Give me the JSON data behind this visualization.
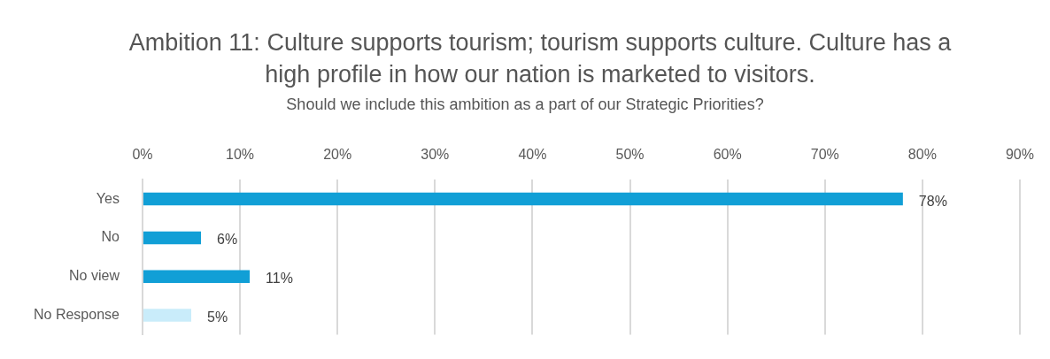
{
  "chart_data": {
    "type": "bar",
    "orientation": "horizontal",
    "title": "Ambition 11: Culture supports tourism; tourism supports culture. Culture has a high profile in how our nation is marketed to visitors.",
    "subtitle": "Should we include this ambition as a part of our Strategic Priorities?",
    "categories": [
      "Yes",
      "No",
      "No view",
      "No Response"
    ],
    "values": [
      78,
      6,
      11,
      5
    ],
    "colors": [
      "#119fd6",
      "#119fd6",
      "#119fd6",
      "#c9ecfa"
    ],
    "value_labels": [
      "78%",
      "6%",
      "11%",
      "5%"
    ],
    "xlim": [
      0,
      90
    ],
    "xticks": [
      {
        "value": 0,
        "label": "0%"
      },
      {
        "value": 10,
        "label": "10%"
      },
      {
        "value": 20,
        "label": "20%"
      },
      {
        "value": 30,
        "label": "30%"
      },
      {
        "value": 40,
        "label": "40%"
      },
      {
        "value": 50,
        "label": "50%"
      },
      {
        "value": 60,
        "label": "60%"
      },
      {
        "value": 70,
        "label": "70%"
      },
      {
        "value": 80,
        "label": "80%"
      },
      {
        "value": 90,
        "label": "90%"
      }
    ],
    "grid": "x",
    "legend": false
  }
}
